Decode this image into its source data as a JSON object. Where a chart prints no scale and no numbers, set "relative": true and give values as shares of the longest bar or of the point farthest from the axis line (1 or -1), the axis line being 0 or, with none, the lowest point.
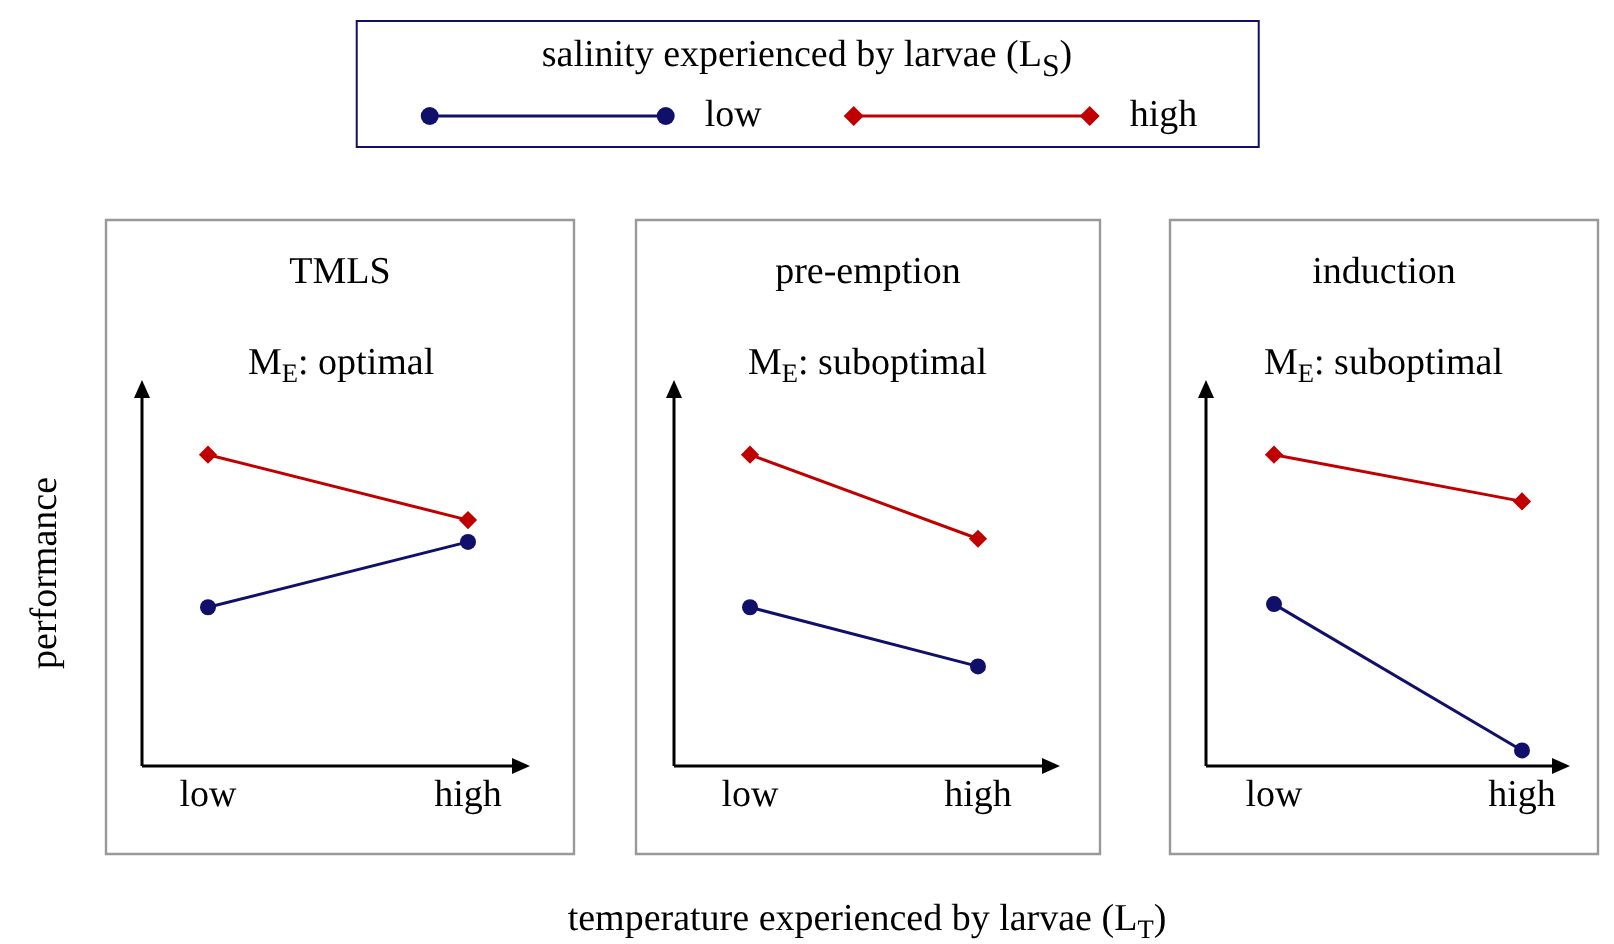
{
  "chart_data": [
    {
      "type": "line",
      "title": "TMLS",
      "subtitle": "M$_{E}$: optimal",
      "ylabel": "performance",
      "legend_title": "salinity experienced by larvae (L$_{S}$)",
      "legend": "top",
      "relative": true,
      "categories": [
        "low",
        "high"
      ],
      "series": [
        {
          "name": "low",
          "color": "#10106b",
          "marker": "circle",
          "values": [
            0.51,
            0.72
          ]
        },
        {
          "name": "high",
          "color": "#c00000",
          "marker": "diamond",
          "values": [
            1,
            0.79
          ]
        }
      ]
    },
    {
      "type": "line",
      "title": "pre-emption",
      "subtitle": "M$_{E}$: suboptimal",
      "xlabel": "temperature experienced by larvae (L$_{T}$)",
      "relative": true,
      "categories": [
        "low",
        "high"
      ],
      "series": [
        {
          "color": "#10106b",
          "marker": "circle",
          "values": [
            0.51,
            0.32
          ]
        },
        {
          "color": "#c00000",
          "marker": "diamond",
          "values": [
            1,
            0.73
          ]
        }
      ]
    },
    {
      "type": "line",
      "title": "induction",
      "subtitle": "M$_{E}$: suboptimal",
      "relative": true,
      "categories": [
        "low",
        "high"
      ],
      "series": [
        {
          "color": "#10106b",
          "marker": "circle",
          "values": [
            0.52,
            0.05
          ]
        },
        {
          "color": "#c00000",
          "marker": "diamond",
          "values": [
            1,
            0.85
          ]
        }
      ]
    }
  ]
}
